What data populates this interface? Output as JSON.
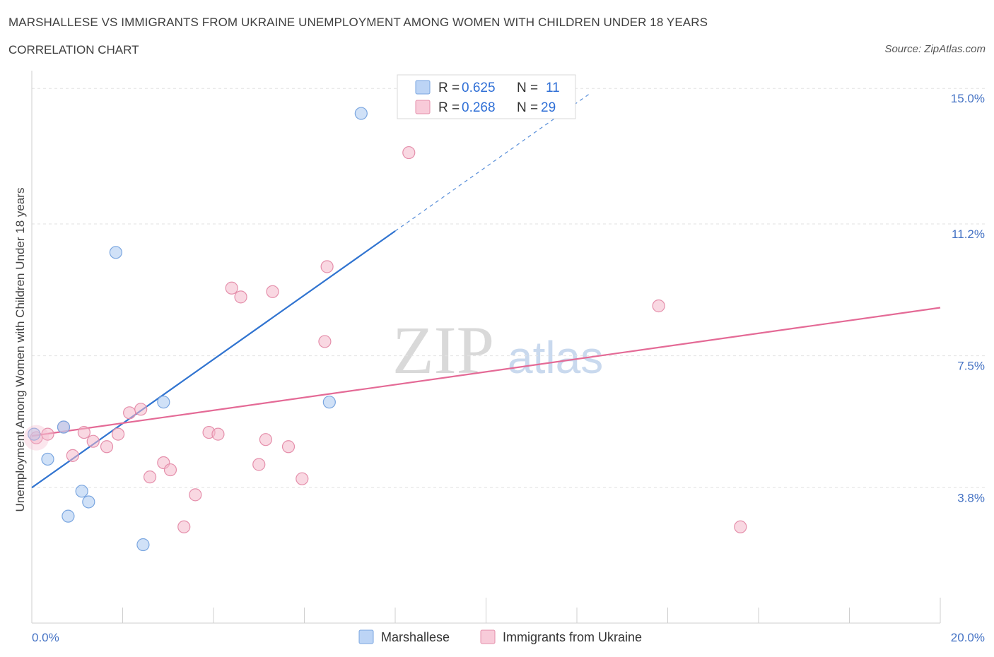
{
  "header": {
    "title": "MARSHALLESE VS IMMIGRANTS FROM UKRAINE UNEMPLOYMENT AMONG WOMEN WITH CHILDREN UNDER 18 YEARS",
    "subtitle": "CORRELATION CHART",
    "source": "Source: ZipAtlas.com"
  },
  "watermark": {
    "zip": "ZIP",
    "atlas": "atlas"
  },
  "legend": {
    "rows": [
      {
        "r_label": "R = ",
        "r_value": "0.625",
        "n_label": "N = ",
        "n_value": "11",
        "color": "#a9c8f0"
      },
      {
        "r_label": "R = ",
        "r_value": "0.268",
        "n_label": "N = ",
        "n_value": "29",
        "color": "#f4b8cb"
      }
    ]
  },
  "chart_data": {
    "type": "scatter",
    "ylabel": "Unemployment Among Women with Children Under 18 years",
    "xlim": [
      0,
      20
    ],
    "ylim": [
      0,
      15.5
    ],
    "x_ticks": [
      "0.0%",
      "20.0%"
    ],
    "y_ticks": [
      {
        "value": 3.8,
        "label": "3.8%"
      },
      {
        "value": 7.5,
        "label": "7.5%"
      },
      {
        "value": 11.2,
        "label": "11.2%"
      },
      {
        "value": 15.0,
        "label": "15.0%"
      }
    ],
    "grid": true,
    "series": [
      {
        "name": "Marshallese",
        "color": "#a9c8f0",
        "stroke": "#7aa6e0",
        "line_color": "#2f73d0",
        "points": [
          [
            0.05,
            5.3
          ],
          [
            0.35,
            4.6
          ],
          [
            0.7,
            5.5
          ],
          [
            0.8,
            3.0
          ],
          [
            1.1,
            3.7
          ],
          [
            1.25,
            3.4
          ],
          [
            1.85,
            10.4
          ],
          [
            2.45,
            2.2
          ],
          [
            2.9,
            6.2
          ],
          [
            6.55,
            6.2
          ],
          [
            7.25,
            14.3
          ]
        ],
        "trend": {
          "x0": 0.0,
          "y0": 3.8,
          "x1": 8.0,
          "y1": 11.0,
          "dash_to_x": 12.3
        }
      },
      {
        "name": "Immigrants from Ukraine",
        "color": "#f4b8cb",
        "stroke": "#e58fab",
        "line_color": "#e46a96",
        "points": [
          [
            0.1,
            5.2
          ],
          [
            0.35,
            5.3
          ],
          [
            0.7,
            5.5
          ],
          [
            0.9,
            4.7
          ],
          [
            1.15,
            5.35
          ],
          [
            1.35,
            5.1
          ],
          [
            1.65,
            4.95
          ],
          [
            1.9,
            5.3
          ],
          [
            2.15,
            5.9
          ],
          [
            2.4,
            6.0
          ],
          [
            2.6,
            4.1
          ],
          [
            2.9,
            4.5
          ],
          [
            3.05,
            4.3
          ],
          [
            3.35,
            2.7
          ],
          [
            3.6,
            3.6
          ],
          [
            3.9,
            5.35
          ],
          [
            4.1,
            5.3
          ],
          [
            4.4,
            9.4
          ],
          [
            4.6,
            9.15
          ],
          [
            5.0,
            4.45
          ],
          [
            5.15,
            5.15
          ],
          [
            5.3,
            9.3
          ],
          [
            5.65,
            4.95
          ],
          [
            5.95,
            4.05
          ],
          [
            6.45,
            7.9
          ],
          [
            6.5,
            10.0
          ],
          [
            8.3,
            13.2
          ],
          [
            13.8,
            8.9
          ],
          [
            15.6,
            2.7
          ]
        ],
        "trend": {
          "x0": 0.0,
          "y0": 5.25,
          "x1": 20.0,
          "y1": 8.85
        }
      }
    ]
  }
}
